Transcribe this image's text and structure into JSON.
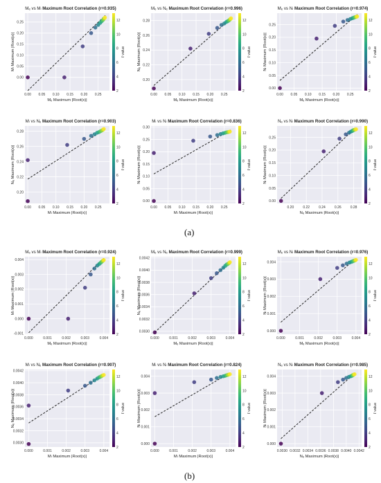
{
  "figure": {
    "panel_labels": [
      "(a)",
      "(b)"
    ]
  },
  "colorbar": {
    "label": "ℓ value",
    "ticks": [
      "2",
      "4",
      "6",
      "8",
      "10",
      "12"
    ],
    "range": [
      2,
      13
    ]
  },
  "chart_data": [
    {
      "type": "scatter",
      "title_prefix": "Mₑ vs Mₗ",
      "title": "Maximum Root Correlation (r=0.935)",
      "xlabel": "Mₑ Maximum |Root(x)|",
      "ylabel": "Mₗ Maximum |Root(x)|",
      "xticks": [
        "0.00",
        "0.05",
        "0.10",
        "0.15",
        "0.20",
        "0.25"
      ],
      "yticks": [
        "0.00",
        "0.05",
        "0.10",
        "0.15",
        "0.20",
        "0.25"
      ],
      "xlim": [
        -0.01,
        0.29
      ],
      "ylim": [
        -0.06,
        0.29
      ],
      "points": [
        [
          0.0,
          0.0,
          2
        ],
        [
          0.13,
          0.0,
          3
        ],
        [
          0.195,
          0.14,
          4
        ],
        [
          0.225,
          0.2,
          5
        ],
        [
          0.24,
          0.225,
          6
        ],
        [
          0.25,
          0.237,
          7
        ],
        [
          0.257,
          0.246,
          8
        ],
        [
          0.262,
          0.253,
          9
        ],
        [
          0.266,
          0.258,
          10
        ],
        [
          0.269,
          0.263,
          11
        ],
        [
          0.272,
          0.267,
          12
        ],
        [
          0.274,
          0.27,
          13
        ]
      ],
      "fit": [
        [
          0.0,
          -0.06
        ],
        [
          0.275,
          0.28
        ]
      ]
    },
    {
      "type": "scatter",
      "title_prefix": "Mₑ vs Nₑ",
      "title": "Maximum Root Correlation (r=0.996)",
      "xlabel": "Mₑ Maximum |Root(x)|",
      "ylabel": "Nₑ Maximum |Root(x)|",
      "xticks": [
        "0.00",
        "0.05",
        "0.10",
        "0.15",
        "0.20",
        "0.25"
      ],
      "yticks": [
        "0.20",
        "0.22",
        "0.24",
        "0.26",
        "0.28"
      ],
      "xlim": [
        -0.01,
        0.29
      ],
      "ylim": [
        0.185,
        0.29
      ],
      "points": [
        [
          0.0,
          0.188,
          2
        ],
        [
          0.13,
          0.242,
          3
        ],
        [
          0.195,
          0.262,
          4
        ],
        [
          0.225,
          0.27,
          5
        ],
        [
          0.24,
          0.274,
          6
        ],
        [
          0.25,
          0.276,
          7
        ],
        [
          0.257,
          0.278,
          8
        ],
        [
          0.262,
          0.279,
          9
        ],
        [
          0.266,
          0.28,
          10
        ],
        [
          0.269,
          0.281,
          11
        ],
        [
          0.272,
          0.282,
          12
        ],
        [
          0.274,
          0.283,
          13
        ]
      ],
      "fit": [
        [
          0.0,
          0.192
        ],
        [
          0.275,
          0.283
        ]
      ]
    },
    {
      "type": "scatter",
      "title_prefix": "Mₑ vs Nₗ",
      "title": "Maximum Root Correlation (r=0.974)",
      "xlabel": "Mₑ Maximum |Root(x)|",
      "ylabel": "Nₗ Maximum |Root(x)|",
      "xticks": [
        "0.00",
        "0.05",
        "0.10",
        "0.15",
        "0.20",
        "0.25"
      ],
      "yticks": [
        "0.00",
        "0.05",
        "0.10",
        "0.15",
        "0.20",
        "0.25"
      ],
      "xlim": [
        -0.01,
        0.29
      ],
      "ylim": [
        -0.01,
        0.295
      ],
      "points": [
        [
          0.0,
          0.0,
          2
        ],
        [
          0.13,
          0.195,
          3
        ],
        [
          0.195,
          0.245,
          4
        ],
        [
          0.225,
          0.262,
          5
        ],
        [
          0.24,
          0.268,
          6
        ],
        [
          0.25,
          0.272,
          7
        ],
        [
          0.257,
          0.275,
          8
        ],
        [
          0.262,
          0.277,
          9
        ],
        [
          0.266,
          0.279,
          10
        ],
        [
          0.269,
          0.28,
          11
        ],
        [
          0.272,
          0.281,
          12
        ],
        [
          0.274,
          0.282,
          13
        ]
      ],
      "fit": [
        [
          0.0,
          0.03
        ],
        [
          0.275,
          0.29
        ]
      ]
    },
    {
      "type": "scatter",
      "title_prefix": "Mₗ vs Nₑ",
      "title": "Maximum Root Correlation (r=0.903)",
      "xlabel": "Mₗ Maximum |Root(x)|",
      "ylabel": "Nₑ Maximum |Root(x)|",
      "xticks": [
        "0.00",
        "0.05",
        "0.10",
        "0.15",
        "0.20",
        "0.25"
      ],
      "yticks": [
        "0.20",
        "0.22",
        "0.24",
        "0.26",
        "0.28"
      ],
      "xlim": [
        -0.01,
        0.29
      ],
      "ylim": [
        0.185,
        0.287
      ],
      "points": [
        [
          0.0,
          0.188,
          2
        ],
        [
          0.0,
          0.242,
          3
        ],
        [
          0.14,
          0.262,
          4
        ],
        [
          0.2,
          0.27,
          5
        ],
        [
          0.225,
          0.274,
          6
        ],
        [
          0.237,
          0.276,
          7
        ],
        [
          0.246,
          0.278,
          8
        ],
        [
          0.253,
          0.279,
          9
        ],
        [
          0.258,
          0.28,
          10
        ],
        [
          0.263,
          0.281,
          11
        ],
        [
          0.267,
          0.282,
          12
        ],
        [
          0.27,
          0.283,
          13
        ]
      ],
      "fit": [
        [
          0.0,
          0.217
        ],
        [
          0.275,
          0.283
        ]
      ]
    },
    {
      "type": "scatter",
      "title_prefix": "Mₗ vs Nₗ",
      "title": "Maximum Root Correlation (r=0.836)",
      "xlabel": "Mₗ Maximum |Root(x)|",
      "ylabel": "Nₗ Maximum |Root(x)|",
      "xticks": [
        "0.00",
        "0.05",
        "0.10",
        "0.15",
        "0.20",
        "0.25"
      ],
      "yticks": [
        "0.00",
        "0.05",
        "0.10",
        "0.15",
        "0.20",
        "0.25",
        "0.30"
      ],
      "xlim": [
        -0.01,
        0.29
      ],
      "ylim": [
        -0.01,
        0.305
      ],
      "points": [
        [
          0.0,
          0.0,
          2
        ],
        [
          0.0,
          0.195,
          3
        ],
        [
          0.14,
          0.245,
          4
        ],
        [
          0.2,
          0.262,
          5
        ],
        [
          0.225,
          0.268,
          6
        ],
        [
          0.237,
          0.272,
          7
        ],
        [
          0.246,
          0.275,
          8
        ],
        [
          0.253,
          0.277,
          9
        ],
        [
          0.258,
          0.279,
          10
        ],
        [
          0.263,
          0.28,
          11
        ],
        [
          0.267,
          0.281,
          12
        ],
        [
          0.27,
          0.282,
          13
        ]
      ],
      "fit": [
        [
          0.0,
          0.11
        ],
        [
          0.275,
          0.29
        ]
      ]
    },
    {
      "type": "scatter",
      "title_prefix": "Nₑ vs Nₗ",
      "title": "Maximum Root Correlation (r=0.990)",
      "xlabel": "Nₑ Maximum |Root(x)|",
      "ylabel": "Nₗ Maximum |Root(x)|",
      "xticks": [
        "0.20",
        "0.22",
        "0.24",
        "0.26",
        "0.28"
      ],
      "yticks": [
        "0.00",
        "0.05",
        "0.10",
        "0.15",
        "0.20",
        "0.25"
      ],
      "xlim": [
        0.183,
        0.29
      ],
      "ylim": [
        -0.01,
        0.295
      ],
      "points": [
        [
          0.188,
          0.0,
          2
        ],
        [
          0.242,
          0.195,
          3
        ],
        [
          0.262,
          0.245,
          4
        ],
        [
          0.27,
          0.262,
          5
        ],
        [
          0.274,
          0.268,
          6
        ],
        [
          0.276,
          0.272,
          7
        ],
        [
          0.278,
          0.275,
          8
        ],
        [
          0.279,
          0.277,
          9
        ],
        [
          0.28,
          0.279,
          10
        ],
        [
          0.281,
          0.28,
          11
        ],
        [
          0.282,
          0.281,
          12
        ],
        [
          0.283,
          0.282,
          13
        ]
      ],
      "fit": [
        [
          0.188,
          0.01
        ],
        [
          0.283,
          0.29
        ]
      ]
    },
    {
      "type": "scatter",
      "title_prefix": "Mₑ vs Mₗ",
      "title": "Maximum Root Correlation (r=0.924)",
      "xlabel": "Mₑ Maximum |Root(x)|",
      "ylabel": "Mₗ Maximum |Root(x)|",
      "xticks": [
        "0.000",
        "0.001",
        "0.002",
        "0.003",
        "0.004"
      ],
      "yticks": [
        "-0.001",
        "0.000",
        "0.001",
        "0.002",
        "0.003",
        "0.004"
      ],
      "xlim": [
        -0.0002,
        0.0043
      ],
      "ylim": [
        -0.00105,
        0.0042
      ],
      "points": [
        [
          0.0,
          0.0,
          2
        ],
        [
          0.0021,
          0.0,
          3
        ],
        [
          0.003,
          0.0021,
          4
        ],
        [
          0.0033,
          0.003,
          5
        ],
        [
          0.0035,
          0.0034,
          6
        ],
        [
          0.00365,
          0.0036,
          7
        ],
        [
          0.00375,
          0.0037,
          8
        ],
        [
          0.00382,
          0.00378,
          9
        ],
        [
          0.00388,
          0.00385,
          10
        ],
        [
          0.00393,
          0.0039,
          11
        ],
        [
          0.00397,
          0.00395,
          12
        ],
        [
          0.004,
          0.00398,
          13
        ]
      ],
      "fit": [
        [
          0.0,
          -0.00095
        ],
        [
          0.004,
          0.0041
        ]
      ]
    },
    {
      "type": "scatter",
      "title_prefix": "Mₑ vs Nₑ",
      "title": "Maximum Root Correlation (r=0.999)",
      "xlabel": "Mₑ Maximum |Root(x)|",
      "ylabel": "Nₑ Maximum |Root(x)|",
      "xticks": [
        "0.000",
        "0.001",
        "0.002",
        "0.003",
        "0.004"
      ],
      "yticks": [
        "0.0030",
        "0.0032",
        "0.0034",
        "0.0036",
        "0.0038",
        "0.0040",
        "0.0042"
      ],
      "xlim": [
        -0.0002,
        0.0043
      ],
      "ylim": [
        0.00295,
        0.00422
      ],
      "points": [
        [
          0.0,
          0.00298,
          2
        ],
        [
          0.0021,
          0.00362,
          3
        ],
        [
          0.003,
          0.00387,
          4
        ],
        [
          0.0033,
          0.00395,
          5
        ],
        [
          0.0035,
          0.004,
          6
        ],
        [
          0.00365,
          0.00404,
          7
        ],
        [
          0.00375,
          0.00407,
          8
        ],
        [
          0.00382,
          0.00409,
          9
        ],
        [
          0.00388,
          0.0041,
          10
        ],
        [
          0.00393,
          0.00411,
          11
        ],
        [
          0.00397,
          0.00412,
          12
        ],
        [
          0.004,
          0.00413,
          13
        ]
      ],
      "fit": [
        [
          0.0,
          0.00298
        ],
        [
          0.004,
          0.00414
        ]
      ]
    },
    {
      "type": "scatter",
      "title_prefix": "Mₑ vs Nₗ",
      "title": "Maximum Root Correlation (r=0.976)",
      "xlabel": "Mₑ Maximum |Root(x)|",
      "ylabel": "Nₗ Maximum |Root(x)|",
      "xticks": [
        "0.000",
        "0.001",
        "0.002",
        "0.003",
        "0.004"
      ],
      "yticks": [
        "0.000",
        "0.001",
        "0.002",
        "0.003",
        "0.004"
      ],
      "xlim": [
        -0.0002,
        0.0043
      ],
      "ylim": [
        -0.0002,
        0.0043
      ],
      "points": [
        [
          0.0,
          0.0,
          2
        ],
        [
          0.0021,
          0.003,
          3
        ],
        [
          0.003,
          0.00365,
          4
        ],
        [
          0.0033,
          0.0038,
          5
        ],
        [
          0.0035,
          0.0039,
          6
        ],
        [
          0.00365,
          0.00396,
          7
        ],
        [
          0.00375,
          0.004,
          8
        ],
        [
          0.00382,
          0.00403,
          9
        ],
        [
          0.00388,
          0.00406,
          10
        ],
        [
          0.00393,
          0.00408,
          11
        ],
        [
          0.00397,
          0.0041,
          12
        ],
        [
          0.004,
          0.00412,
          13
        ]
      ],
      "fit": [
        [
          0.0,
          0.0005
        ],
        [
          0.004,
          0.0042
        ]
      ]
    },
    {
      "type": "scatter",
      "title_prefix": "Mₗ vs Nₑ",
      "title": "Maximum Root Correlation (r=0.907)",
      "xlabel": "Mₗ Maximum |Root(x)|",
      "ylabel": "Nₑ Maximum |Root(x)|",
      "xticks": [
        "0.000",
        "0.001",
        "0.002",
        "0.003",
        "0.004"
      ],
      "yticks": [
        "0.0030",
        "0.0032",
        "0.0034",
        "0.0036",
        "0.0038",
        "0.0040",
        "0.0042"
      ],
      "xlim": [
        -0.0002,
        0.0043
      ],
      "ylim": [
        0.00293,
        0.00422
      ],
      "points": [
        [
          0.0,
          0.00298,
          2
        ],
        [
          0.0,
          0.00362,
          3
        ],
        [
          0.0021,
          0.00387,
          4
        ],
        [
          0.003,
          0.00395,
          5
        ],
        [
          0.0033,
          0.004,
          6
        ],
        [
          0.0035,
          0.00404,
          7
        ],
        [
          0.00365,
          0.00407,
          8
        ],
        [
          0.00375,
          0.00409,
          9
        ],
        [
          0.00382,
          0.0041,
          10
        ],
        [
          0.00388,
          0.00411,
          11
        ],
        [
          0.00393,
          0.00412,
          12
        ],
        [
          0.004,
          0.00413,
          13
        ]
      ],
      "fit": [
        [
          0.0,
          0.00333
        ],
        [
          0.004,
          0.00414
        ]
      ]
    },
    {
      "type": "scatter",
      "title_prefix": "Mₗ vs Nₗ",
      "title": "Maximum Root Correlation (r=0.824)",
      "xlabel": "Mₗ Maximum |Root(x)|",
      "ylabel": "Nₗ Maximum |Root(x)|",
      "xticks": [
        "0.000",
        "0.001",
        "0.002",
        "0.003",
        "0.004"
      ],
      "yticks": [
        "0.000",
        "0.001",
        "0.002",
        "0.003",
        "0.004"
      ],
      "xlim": [
        -0.0002,
        0.0043
      ],
      "ylim": [
        -0.0002,
        0.0044
      ],
      "points": [
        [
          0.0,
          0.0,
          2
        ],
        [
          0.0,
          0.003,
          3
        ],
        [
          0.0021,
          0.00365,
          4
        ],
        [
          0.003,
          0.0038,
          5
        ],
        [
          0.0033,
          0.0039,
          6
        ],
        [
          0.0035,
          0.00396,
          7
        ],
        [
          0.00365,
          0.004,
          8
        ],
        [
          0.00375,
          0.00403,
          9
        ],
        [
          0.00382,
          0.00406,
          10
        ],
        [
          0.00388,
          0.00408,
          11
        ],
        [
          0.00393,
          0.0041,
          12
        ],
        [
          0.004,
          0.00412,
          13
        ]
      ],
      "fit": [
        [
          0.0,
          0.0016
        ],
        [
          0.004,
          0.0042
        ]
      ]
    },
    {
      "type": "scatter",
      "title_prefix": "Nₑ vs Nₗ",
      "title": "Maximum Root Correlation (r=0.985)",
      "xlabel": "Nₑ Maximum |Root(x)|",
      "ylabel": "Nₗ Maximum |Root(x)|",
      "xticks": [
        "0.0030",
        "0.0032",
        "0.0034",
        "0.0036",
        "0.0038",
        "0.0040",
        "0.0042"
      ],
      "yticks": [
        "0.000",
        "0.001",
        "0.002",
        "0.003",
        "0.004"
      ],
      "xlim": [
        0.00292,
        0.00424
      ],
      "ylim": [
        -0.0002,
        0.0044
      ],
      "points": [
        [
          0.00298,
          0.0,
          2
        ],
        [
          0.00362,
          0.003,
          3
        ],
        [
          0.00387,
          0.00365,
          4
        ],
        [
          0.00395,
          0.0038,
          5
        ],
        [
          0.004,
          0.0039,
          6
        ],
        [
          0.00404,
          0.00396,
          7
        ],
        [
          0.00407,
          0.004,
          8
        ],
        [
          0.00409,
          0.00403,
          9
        ],
        [
          0.0041,
          0.00406,
          10
        ],
        [
          0.00411,
          0.00408,
          11
        ],
        [
          0.00412,
          0.0041,
          12
        ],
        [
          0.00413,
          0.00412,
          13
        ]
      ],
      "fit": [
        [
          0.00298,
          0.0003
        ],
        [
          0.00414,
          0.0042
        ]
      ]
    }
  ]
}
